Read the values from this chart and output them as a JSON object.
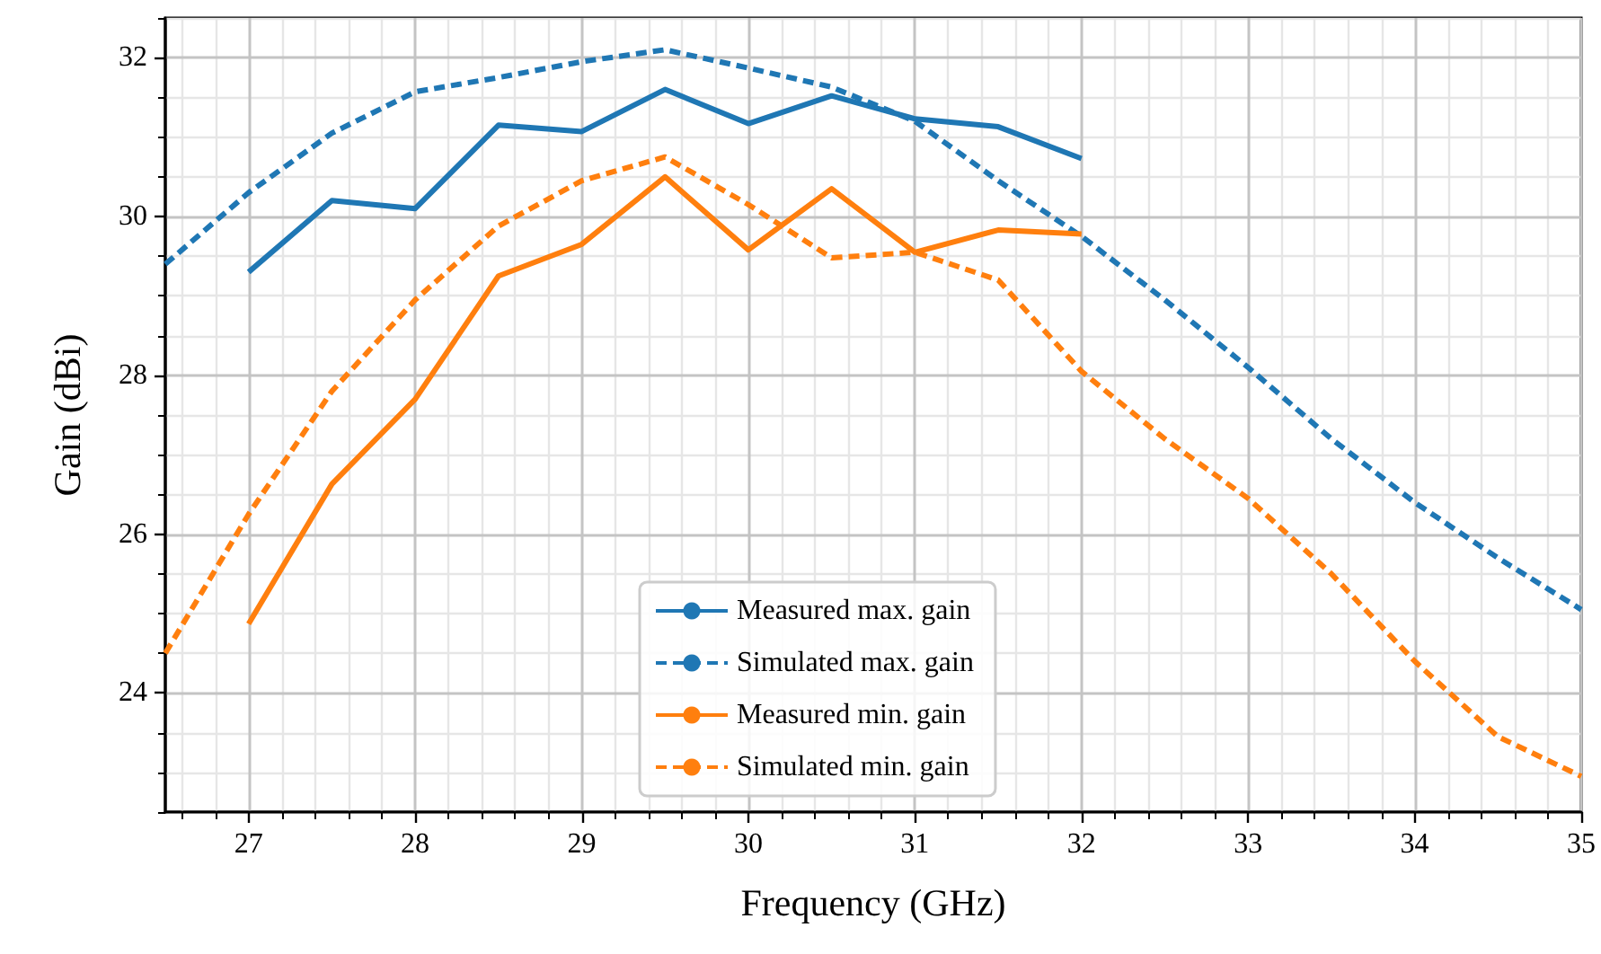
{
  "chart_data": {
    "type": "line",
    "xlabel": "Frequency (GHz)",
    "ylabel": "Gain (dBi)",
    "xlim": [
      26.5,
      35
    ],
    "xticks": [
      27,
      28,
      29,
      30,
      31,
      32,
      33,
      34,
      35
    ],
    "ylim": [
      22.5,
      32.5
    ],
    "yticks": [
      24,
      26,
      28,
      30,
      32
    ],
    "grid": true,
    "legend": "bottom",
    "marker": "none",
    "series": [
      {
        "name": "Measured max. gain",
        "color": "#1f77b4",
        "line_style": "solid",
        "x": [
          27,
          27.5,
          28,
          28.5,
          29,
          29.5,
          30,
          30.5,
          31,
          31.5,
          32
        ],
        "values": [
          29.3,
          30.2,
          30.1,
          31.15,
          31.07,
          31.6,
          31.17,
          31.52,
          31.23,
          31.13,
          30.73
        ]
      },
      {
        "name": "Simulated max. gain",
        "color": "#1f77b4",
        "line_style": "dashed",
        "x": [
          26.5,
          27,
          27.5,
          28,
          28.5,
          29,
          29.5,
          30,
          30.5,
          31,
          31.5,
          32,
          32.5,
          33,
          33.5,
          34,
          34.5,
          35
        ],
        "values": [
          29.4,
          30.3,
          31.05,
          31.57,
          31.75,
          31.95,
          32.1,
          31.87,
          31.63,
          31.2,
          30.45,
          29.75,
          28.95,
          28.1,
          27.2,
          26.4,
          25.7,
          25.05
        ]
      },
      {
        "name": "Measured min. gain",
        "color": "#ff7f0e",
        "line_style": "solid",
        "x": [
          27,
          27.5,
          28,
          28.5,
          29,
          29.5,
          30,
          30.5,
          31,
          31.5,
          32
        ],
        "values": [
          24.87,
          26.63,
          27.7,
          29.25,
          29.65,
          30.5,
          29.58,
          30.35,
          29.55,
          29.83,
          29.78
        ]
      },
      {
        "name": "Simulated min. gain",
        "color": "#ff7f0e",
        "line_style": "dashed",
        "x": [
          26.5,
          27,
          27.5,
          28,
          28.5,
          29,
          29.5,
          30,
          30.5,
          31,
          31.5,
          32,
          32.5,
          33,
          33.5,
          34,
          34.5,
          35
        ],
        "values": [
          24.5,
          26.25,
          27.8,
          28.95,
          29.88,
          30.45,
          30.75,
          30.15,
          29.48,
          29.55,
          29.2,
          28.05,
          27.2,
          26.45,
          25.5,
          24.4,
          23.45,
          22.95
        ]
      }
    ]
  }
}
